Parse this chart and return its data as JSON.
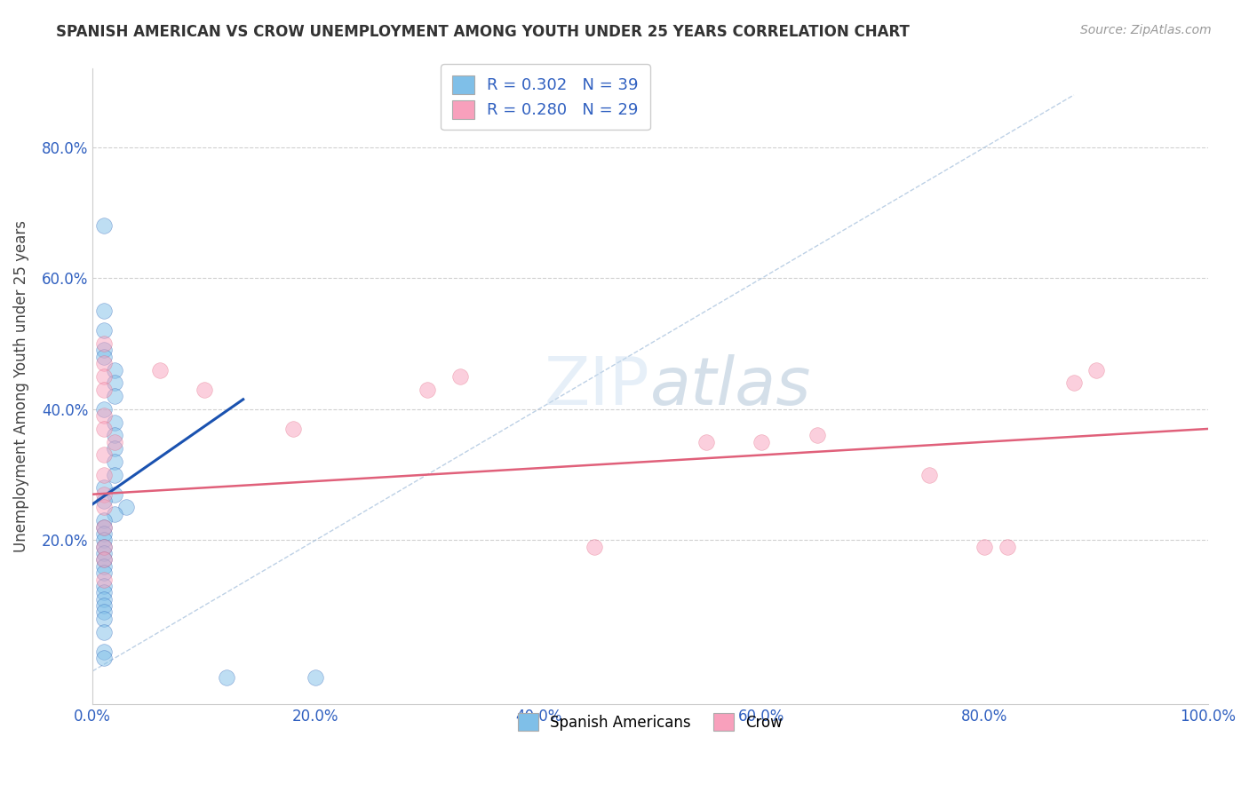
{
  "title": "SPANISH AMERICAN VS CROW UNEMPLOYMENT AMONG YOUTH UNDER 25 YEARS CORRELATION CHART",
  "source": "Source: ZipAtlas.com",
  "ylabel": "Unemployment Among Youth under 25 years",
  "xlim": [
    0.0,
    1.0
  ],
  "ylim": [
    -0.05,
    0.92
  ],
  "xtick_labels": [
    "0.0%",
    "20.0%",
    "40.0%",
    "60.0%",
    "80.0%",
    "100.0%"
  ],
  "xtick_vals": [
    0.0,
    0.2,
    0.4,
    0.6,
    0.8,
    1.0
  ],
  "ytick_labels": [
    "20.0%",
    "40.0%",
    "60.0%",
    "80.0%"
  ],
  "ytick_vals": [
    0.2,
    0.4,
    0.6,
    0.8
  ],
  "legend_entries": [
    {
      "label": "R = 0.302   N = 39",
      "color": "#aac4e8"
    },
    {
      "label": "R = 0.280   N = 29",
      "color": "#f4b8c8"
    }
  ],
  "legend_r_color": "#3060c0",
  "scatter_spanish": [
    [
      0.01,
      0.68
    ],
    [
      0.01,
      0.55
    ],
    [
      0.01,
      0.52
    ],
    [
      0.01,
      0.49
    ],
    [
      0.01,
      0.48
    ],
    [
      0.02,
      0.46
    ],
    [
      0.02,
      0.44
    ],
    [
      0.02,
      0.42
    ],
    [
      0.01,
      0.4
    ],
    [
      0.02,
      0.38
    ],
    [
      0.02,
      0.36
    ],
    [
      0.02,
      0.34
    ],
    [
      0.02,
      0.32
    ],
    [
      0.02,
      0.3
    ],
    [
      0.01,
      0.28
    ],
    [
      0.02,
      0.27
    ],
    [
      0.01,
      0.26
    ],
    [
      0.03,
      0.25
    ],
    [
      0.02,
      0.24
    ],
    [
      0.01,
      0.23
    ],
    [
      0.01,
      0.22
    ],
    [
      0.01,
      0.21
    ],
    [
      0.01,
      0.2
    ],
    [
      0.01,
      0.19
    ],
    [
      0.01,
      0.18
    ],
    [
      0.01,
      0.17
    ],
    [
      0.01,
      0.16
    ],
    [
      0.01,
      0.15
    ],
    [
      0.01,
      0.13
    ],
    [
      0.01,
      0.12
    ],
    [
      0.01,
      0.11
    ],
    [
      0.01,
      0.1
    ],
    [
      0.01,
      0.09
    ],
    [
      0.01,
      0.08
    ],
    [
      0.01,
      0.06
    ],
    [
      0.01,
      0.03
    ],
    [
      0.01,
      0.02
    ],
    [
      0.12,
      -0.01
    ],
    [
      0.2,
      -0.01
    ]
  ],
  "scatter_crow": [
    [
      0.01,
      0.5
    ],
    [
      0.01,
      0.47
    ],
    [
      0.01,
      0.45
    ],
    [
      0.01,
      0.43
    ],
    [
      0.01,
      0.39
    ],
    [
      0.01,
      0.37
    ],
    [
      0.01,
      0.33
    ],
    [
      0.01,
      0.3
    ],
    [
      0.01,
      0.27
    ],
    [
      0.01,
      0.25
    ],
    [
      0.01,
      0.22
    ],
    [
      0.01,
      0.19
    ],
    [
      0.01,
      0.17
    ],
    [
      0.01,
      0.14
    ],
    [
      0.02,
      0.35
    ],
    [
      0.06,
      0.46
    ],
    [
      0.1,
      0.43
    ],
    [
      0.18,
      0.37
    ],
    [
      0.3,
      0.43
    ],
    [
      0.33,
      0.45
    ],
    [
      0.45,
      0.19
    ],
    [
      0.55,
      0.35
    ],
    [
      0.6,
      0.35
    ],
    [
      0.65,
      0.36
    ],
    [
      0.75,
      0.3
    ],
    [
      0.8,
      0.19
    ],
    [
      0.82,
      0.19
    ],
    [
      0.88,
      0.44
    ],
    [
      0.9,
      0.46
    ]
  ],
  "spanish_color": "#7fbfe8",
  "crow_color": "#f8a0bc",
  "trendline_spanish_color": "#1a52b0",
  "trendline_crow_color": "#e0607a",
  "diagonal_color": "#9ab8d8",
  "background_color": "#ffffff",
  "grid_color": "#d0d0d0",
  "trendline_spanish": [
    [
      0.0,
      0.255
    ],
    [
      0.135,
      0.415
    ]
  ],
  "trendline_crow": [
    [
      0.0,
      0.27
    ],
    [
      1.0,
      0.37
    ]
  ]
}
